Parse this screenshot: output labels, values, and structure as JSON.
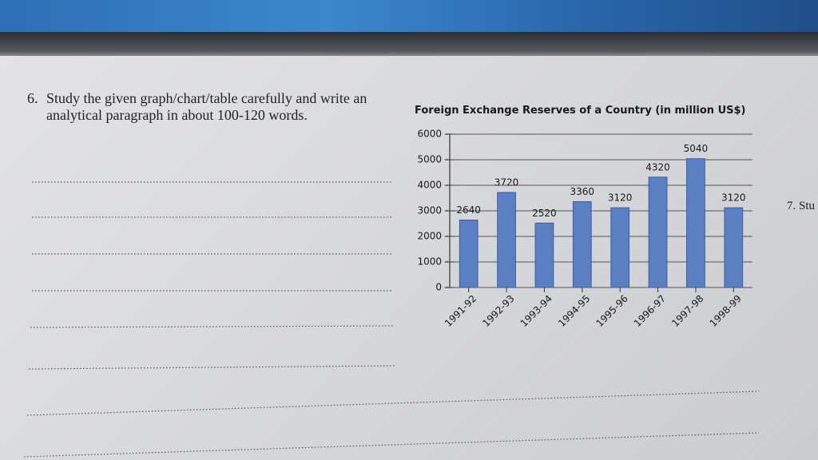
{
  "question": {
    "number": "6.",
    "text": "Study the given graph/chart/table carefully and write an analytical paragraph in about 100-120 words."
  },
  "next_question": {
    "text": "7. Stu"
  },
  "chart_data": {
    "type": "bar",
    "title": "Foreign Exchange Reserves of a Country (in million US$)",
    "categories": [
      "1991-92",
      "1992-93",
      "1993-94",
      "1994-95",
      "1995-96",
      "1996-97",
      "1997-98",
      "1998-99"
    ],
    "values": [
      2640,
      3720,
      2520,
      3360,
      3120,
      4320,
      5040,
      3120
    ],
    "color": "#5a7fc3",
    "ylim": [
      0,
      6000
    ],
    "yticks": [
      0,
      1000,
      2000,
      3000,
      4000,
      5000,
      6000
    ],
    "grid": true
  }
}
